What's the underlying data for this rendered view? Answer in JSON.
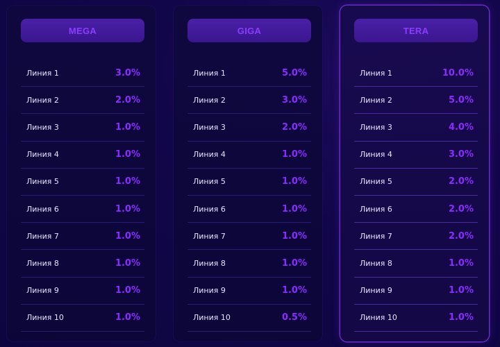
{
  "plans": [
    {
      "name": "MEGA",
      "rows": [
        {
          "label": "Линия 1",
          "value": "3.0%"
        },
        {
          "label": "Линия 2",
          "value": "2.0%"
        },
        {
          "label": "Линия 3",
          "value": "1.0%"
        },
        {
          "label": "Линия 4",
          "value": "1.0%"
        },
        {
          "label": "Линия 5",
          "value": "1.0%"
        },
        {
          "label": "Линия 6",
          "value": "1.0%"
        },
        {
          "label": "Линия 7",
          "value": "1.0%"
        },
        {
          "label": "Линия 8",
          "value": "1.0%"
        },
        {
          "label": "Линия 9",
          "value": "1.0%"
        },
        {
          "label": "Линия 10",
          "value": "1.0%"
        }
      ]
    },
    {
      "name": "GIGA",
      "rows": [
        {
          "label": "Линия 1",
          "value": "5.0%"
        },
        {
          "label": "Линия 2",
          "value": "3.0%"
        },
        {
          "label": "Линия 3",
          "value": "2.0%"
        },
        {
          "label": "Линия 4",
          "value": "1.0%"
        },
        {
          "label": "Линия 5",
          "value": "1.0%"
        },
        {
          "label": "Линия 6",
          "value": "1.0%"
        },
        {
          "label": "Линия 7",
          "value": "1.0%"
        },
        {
          "label": "Линия 8",
          "value": "1.0%"
        },
        {
          "label": "Линия 9",
          "value": "1.0%"
        },
        {
          "label": "Линия 10",
          "value": "0.5%"
        }
      ]
    },
    {
      "name": "TERA",
      "rows": [
        {
          "label": "Линия 1",
          "value": "10.0%"
        },
        {
          "label": "Линия 2",
          "value": "5.0%"
        },
        {
          "label": "Линия 3",
          "value": "4.0%"
        },
        {
          "label": "Линия 4",
          "value": "3.0%"
        },
        {
          "label": "Линия 5",
          "value": "2.0%"
        },
        {
          "label": "Линия 6",
          "value": "2.0%"
        },
        {
          "label": "Линия 7",
          "value": "2.0%"
        },
        {
          "label": "Линия 8",
          "value": "1.0%"
        },
        {
          "label": "Линия 9",
          "value": "1.0%"
        },
        {
          "label": "Линия 10",
          "value": "1.0%"
        }
      ]
    }
  ],
  "colors": {
    "accent": "#8a2cff",
    "header_bg": "#3a168e",
    "selected_border": "#6a2bc8",
    "background": "#12064a"
  }
}
